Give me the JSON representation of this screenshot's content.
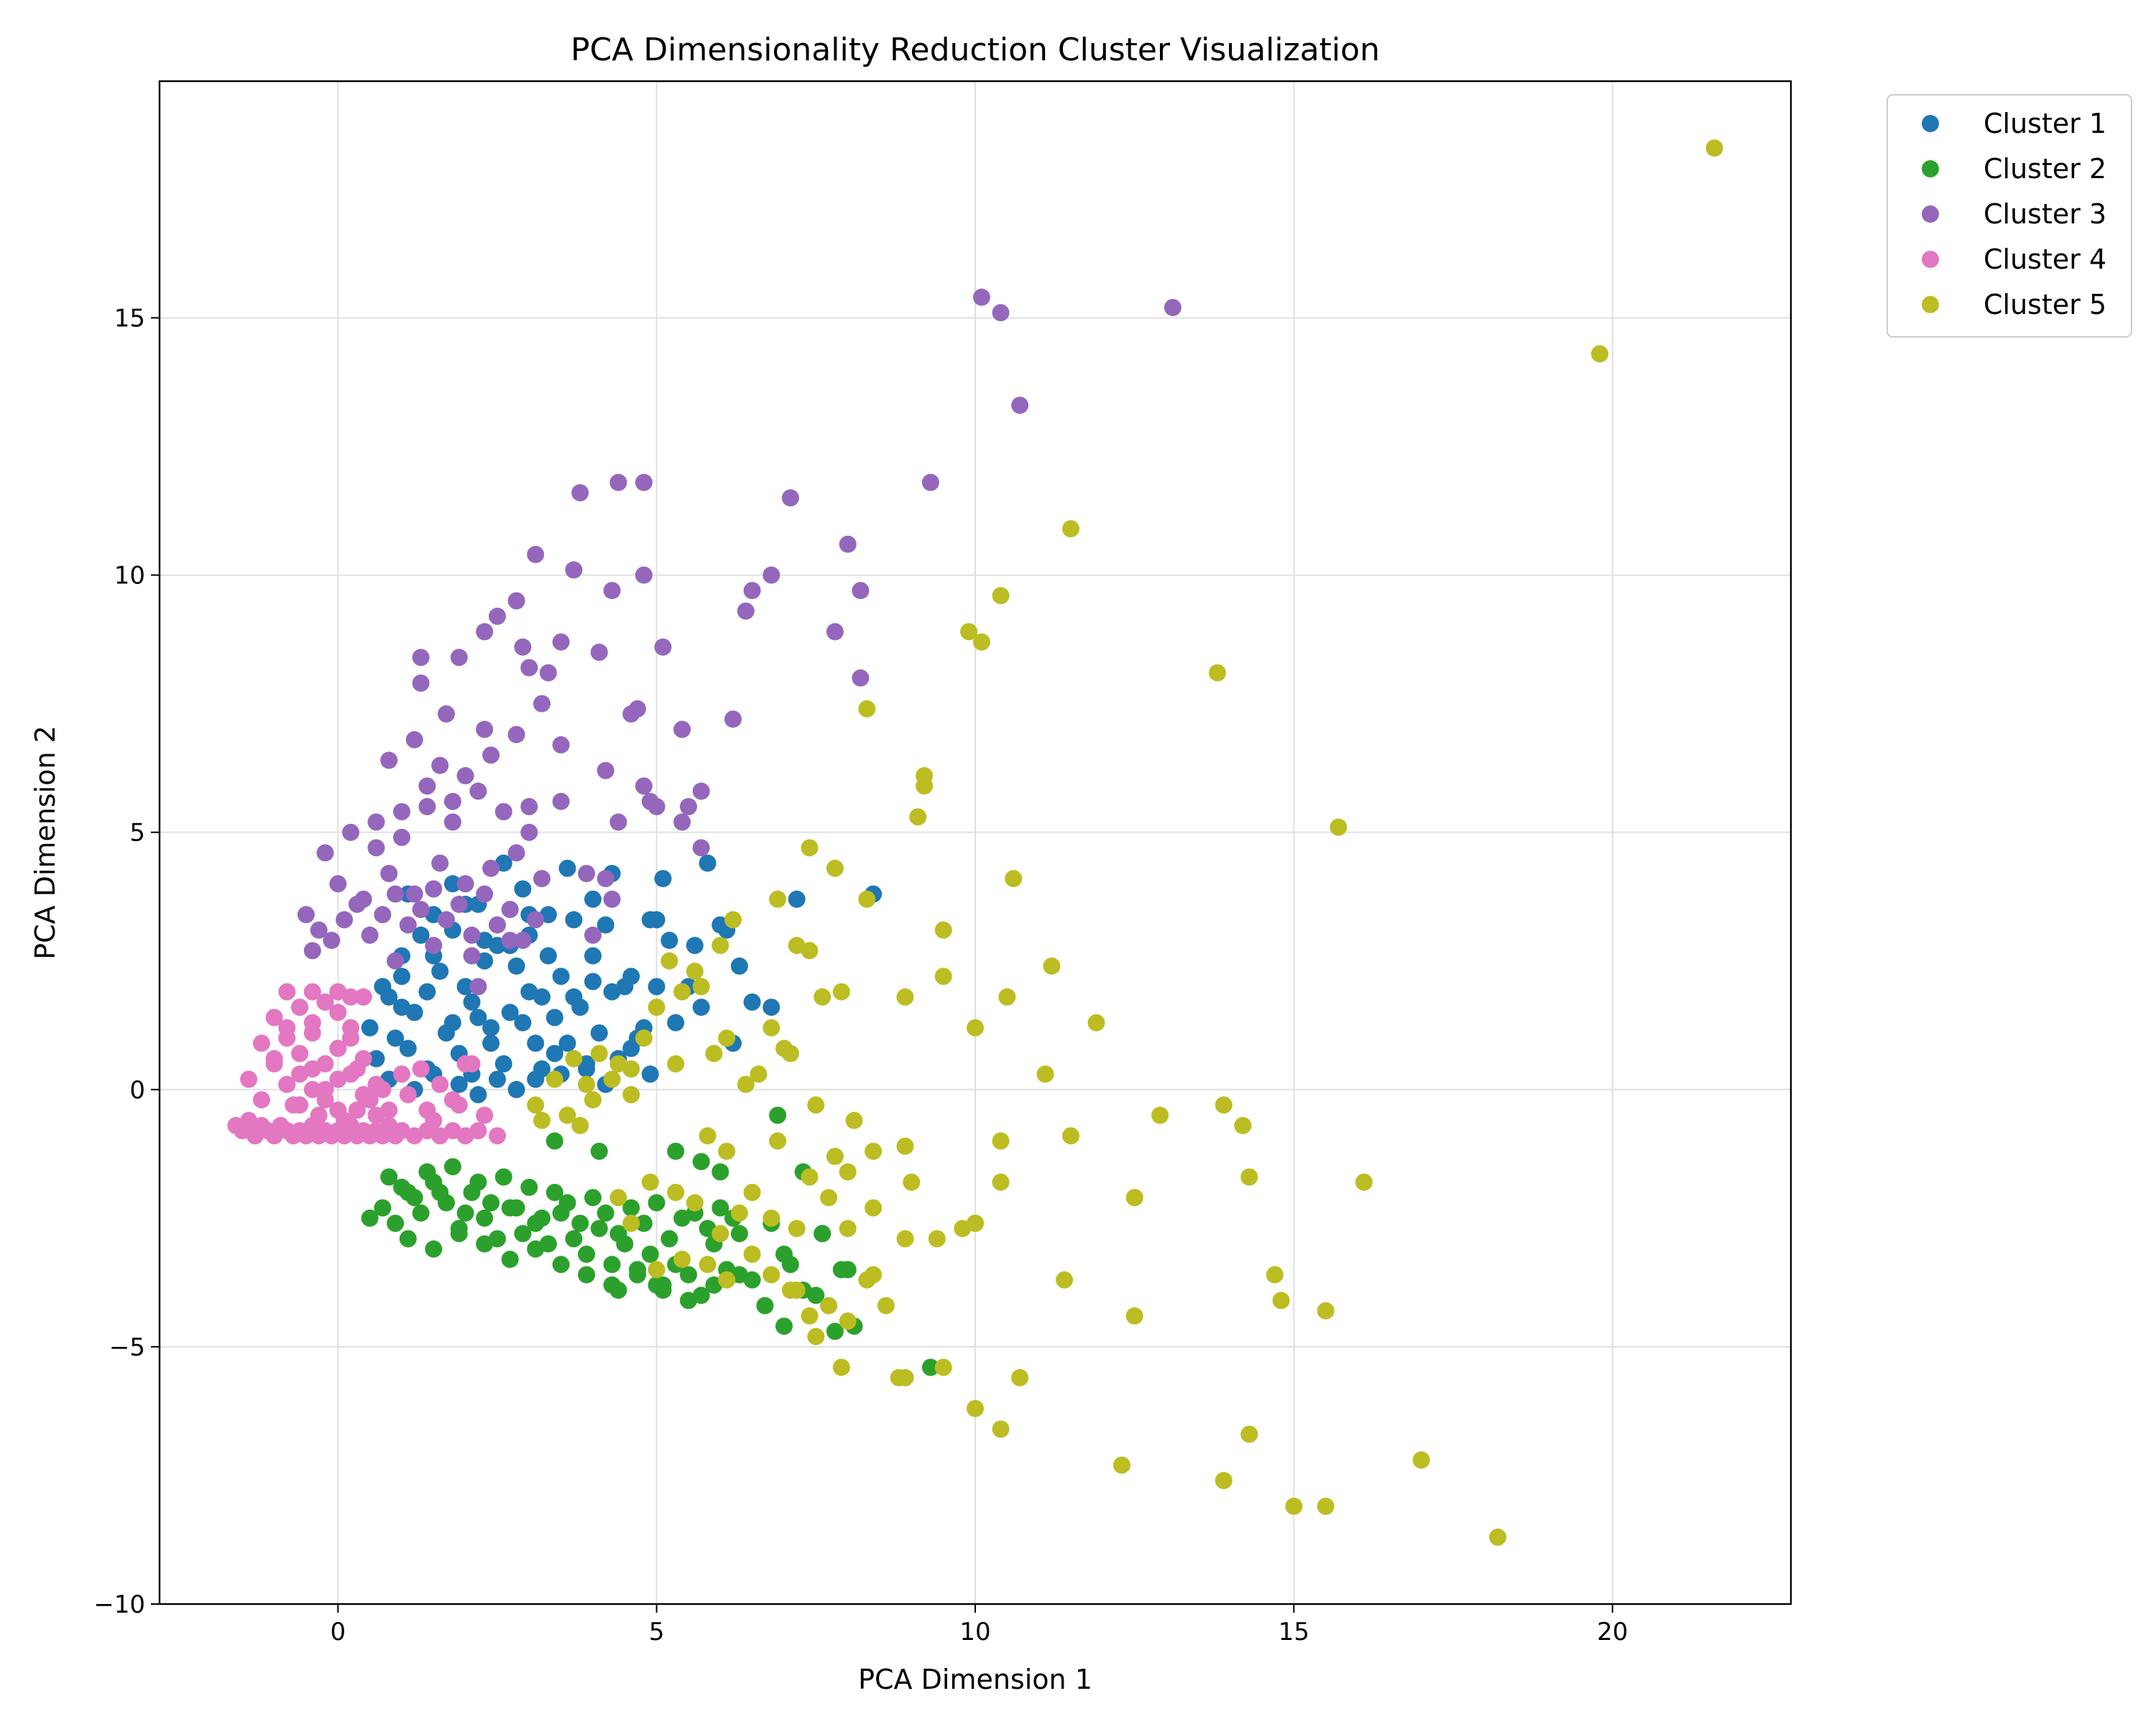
{
  "chart_data": {
    "type": "scatter",
    "title": "PCA Dimensionality Reduction Cluster Visualization",
    "xlabel": "PCA Dimension 1",
    "ylabel": "PCA Dimension 2",
    "xlim": [
      -2.8,
      22.8
    ],
    "ylim": [
      -10,
      19.6
    ],
    "xticks": [
      0,
      5,
      10,
      15,
      20
    ],
    "yticks": [
      -10,
      -5,
      0,
      5,
      10,
      15
    ],
    "grid": true,
    "legend": "outside-top-right",
    "series": [
      {
        "name": "Cluster 1",
        "color": "#1f77b4",
        "x": [
          0.5,
          0.8,
          1.0,
          1.2,
          1.5,
          1.8,
          2.0,
          2.2,
          2.5,
          2.8,
          3.0,
          3.2,
          3.5,
          3.8,
          4.0,
          4.2,
          4.5,
          4.8,
          5.0,
          5.2,
          5.5,
          5.8,
          6.0,
          6.3,
          6.8,
          7.2,
          8.4,
          0.6,
          0.9,
          1.1,
          1.4,
          1.7,
          1.9,
          2.1,
          2.4,
          2.6,
          2.9,
          3.1,
          3.4,
          3.6,
          3.9,
          4.1,
          4.4,
          4.6,
          4.9,
          5.1,
          5.6,
          6.1,
          0.7,
          1.0,
          1.3,
          1.6,
          2.0,
          2.3,
          2.7,
          3.0,
          3.3,
          3.7,
          4.0,
          4.3,
          0.8,
          1.2,
          1.5,
          1.9,
          2.2,
          2.5,
          2.8,
          3.2,
          3.5,
          3.9,
          4.2,
          1.0,
          1.4,
          1.8,
          2.1,
          2.4,
          2.7,
          3.0,
          3.4,
          3.7,
          1.1,
          1.5,
          1.8,
          2.2,
          2.6,
          2.9,
          3.3,
          3.6,
          4.0,
          4.3,
          4.7,
          5.0,
          5.3,
          5.7,
          6.2,
          6.5,
          4.6,
          4.9,
          3.1,
          2.3
        ],
        "y": [
          1.2,
          1.8,
          2.2,
          1.5,
          2.6,
          3.1,
          2.0,
          1.4,
          2.8,
          2.4,
          3.0,
          1.8,
          2.2,
          1.6,
          2.6,
          3.2,
          2.0,
          1.2,
          3.3,
          2.9,
          2.0,
          4.4,
          3.2,
          2.4,
          1.6,
          3.7,
          3.8,
          0.6,
          1.0,
          0.8,
          0.4,
          1.1,
          0.7,
          0.3,
          0.9,
          0.5,
          1.3,
          0.2,
          0.7,
          0.9,
          0.4,
          1.1,
          0.6,
          0.8,
          0.3,
          4.1,
          2.8,
          3.1,
          2.0,
          2.6,
          3.0,
          2.3,
          3.6,
          2.5,
          2.8,
          3.4,
          2.6,
          3.3,
          2.1,
          1.9,
          0.2,
          0.0,
          0.3,
          0.1,
          -0.1,
          0.2,
          0.0,
          0.4,
          0.3,
          0.5,
          0.1,
          1.6,
          1.9,
          1.3,
          1.7,
          1.2,
          1.5,
          1.9,
          1.4,
          1.8,
          3.8,
          3.4,
          4.0,
          3.6,
          4.4,
          3.9,
          3.4,
          4.3,
          3.7,
          4.2,
          1.0,
          2.0,
          1.3,
          1.6,
          0.9,
          1.7,
          2.2,
          3.3,
          0.9,
          2.9
        ]
      },
      {
        "name": "Cluster 2",
        "color": "#2ca02c",
        "x": [
          0.5,
          0.7,
          0.9,
          1.1,
          1.3,
          1.5,
          1.7,
          1.9,
          2.1,
          2.3,
          2.5,
          2.7,
          2.9,
          3.1,
          3.3,
          3.5,
          3.7,
          3.9,
          4.1,
          4.3,
          4.5,
          4.7,
          4.9,
          5.1,
          5.3,
          5.5,
          5.7,
          5.9,
          6.1,
          6.3,
          6.5,
          6.8,
          7.0,
          7.3,
          7.6,
          7.9,
          8.1,
          9.3,
          0.8,
          1.0,
          1.2,
          1.4,
          1.6,
          1.8,
          2.0,
          2.2,
          2.4,
          2.6,
          2.8,
          3.0,
          3.2,
          3.4,
          3.6,
          3.8,
          4.0,
          4.2,
          4.4,
          4.6,
          4.8,
          5.0,
          5.2,
          5.4,
          5.6,
          5.8,
          6.0,
          6.2,
          1.1,
          1.5,
          1.9,
          2.3,
          2.7,
          3.1,
          3.5,
          3.9,
          4.3,
          4.7,
          5.1,
          5.5,
          5.9,
          6.3,
          6.7,
          7.1,
          7.5,
          7.8,
          3.4,
          4.1,
          5.3,
          5.7,
          6.0,
          6.9,
          7.3,
          7.6,
          8.0,
          7.0,
          5.0,
          4.4
        ],
        "y": [
          -2.5,
          -2.3,
          -2.6,
          -2.0,
          -2.4,
          -1.8,
          -2.2,
          -2.7,
          -2.0,
          -2.5,
          -2.9,
          -2.3,
          -2.8,
          -2.6,
          -3.0,
          -2.4,
          -2.9,
          -3.2,
          -2.7,
          -3.4,
          -3.0,
          -3.6,
          -3.2,
          -3.8,
          -3.4,
          -3.6,
          -4.0,
          -3.0,
          -3.5,
          -2.8,
          -3.7,
          -2.6,
          -3.2,
          -3.9,
          -2.8,
          -3.5,
          -4.6,
          -5.4,
          -1.7,
          -1.9,
          -2.1,
          -1.6,
          -2.0,
          -1.5,
          -2.4,
          -1.8,
          -2.2,
          -1.7,
          -2.3,
          -1.9,
          -2.5,
          -2.0,
          -2.2,
          -2.6,
          -2.1,
          -2.4,
          -2.8,
          -2.3,
          -2.6,
          -2.2,
          -2.9,
          -2.5,
          -2.4,
          -2.7,
          -2.3,
          -2.5,
          -2.9,
          -3.1,
          -2.8,
          -3.0,
          -3.3,
          -3.1,
          -3.4,
          -3.6,
          -3.8,
          -3.5,
          -3.9,
          -4.1,
          -3.8,
          -3.6,
          -4.2,
          -3.4,
          -4.0,
          -4.7,
          -1.0,
          -1.2,
          -1.2,
          -1.4,
          -1.6,
          -0.5,
          -1.6,
          -2.8,
          -3.5,
          -4.6,
          -3.8,
          -3.9
        ]
      },
      {
        "name": "Cluster 3",
        "color": "#9467bd",
        "x": [
          10.1,
          10.4,
          13.1,
          10.7,
          9.3,
          7.1,
          4.4,
          4.8,
          3.8,
          3.1,
          3.7,
          4.8,
          6.8,
          8.0,
          8.2,
          6.5,
          6.4,
          4.3,
          2.8,
          2.5,
          2.3,
          1.3,
          1.9,
          5.1,
          7.8,
          8.2,
          2.9,
          3.0,
          3.3,
          1.3,
          4.1,
          3.5,
          4.7,
          4.6,
          3.2,
          5.4,
          6.2,
          3.5,
          4.2,
          4.8,
          4.9,
          5.7,
          5.0,
          5.5,
          5.4,
          5.7,
          4.4,
          3.5,
          3.9,
          4.2,
          -0.5,
          -0.3,
          -0.1,
          0.1,
          0.3,
          0.5,
          0.7,
          0.9,
          1.1,
          1.3,
          1.5,
          1.7,
          1.9,
          2.1,
          2.3,
          2.5,
          2.7,
          2.9,
          3.1,
          -0.4,
          0.0,
          0.4,
          0.8,
          1.2,
          1.6,
          2.0,
          2.4,
          2.8,
          3.2,
          0.6,
          1.0,
          1.4,
          1.8,
          2.2,
          2.6,
          3.0,
          0.8,
          1.2,
          1.6,
          2.0,
          2.4,
          2.8,
          -0.2,
          0.2,
          0.6,
          1.0,
          1.4,
          1.8,
          0.9,
          1.5,
          2.1,
          2.7,
          1.7,
          2.3,
          3.0,
          4.0,
          4.3,
          2.2
        ],
        "y": [
          15.4,
          15.1,
          15.2,
          13.3,
          11.8,
          11.5,
          11.8,
          11.8,
          11.6,
          10.4,
          10.1,
          10.0,
          10.0,
          10.6,
          9.7,
          9.7,
          9.3,
          9.7,
          9.5,
          9.2,
          8.9,
          8.4,
          8.4,
          8.6,
          8.9,
          8.0,
          8.6,
          8.2,
          8.1,
          7.9,
          8.5,
          8.7,
          7.4,
          7.3,
          7.5,
          7.0,
          7.2,
          6.7,
          6.2,
          5.9,
          5.6,
          5.8,
          5.5,
          5.5,
          5.2,
          4.7,
          5.2,
          5.6,
          4.2,
          4.1,
          3.4,
          3.1,
          2.9,
          3.3,
          3.6,
          3.0,
          3.4,
          3.8,
          3.2,
          3.5,
          3.9,
          3.3,
          3.6,
          3.0,
          3.8,
          3.2,
          3.5,
          2.9,
          3.3,
          2.7,
          4.0,
          3.7,
          4.2,
          3.8,
          4.4,
          4.0,
          4.3,
          4.6,
          4.1,
          5.2,
          4.9,
          5.5,
          5.2,
          5.8,
          5.4,
          5.0,
          6.4,
          6.8,
          6.3,
          6.1,
          6.5,
          6.9,
          4.6,
          5.0,
          4.7,
          5.4,
          5.9,
          5.6,
          2.5,
          2.8,
          2.6,
          2.9,
          7.3,
          7.0,
          5.5,
          3.0,
          3.7,
          2.0
        ]
      },
      {
        "name": "Cluster 4",
        "color": "#e377c2",
        "x": [
          -1.6,
          -1.5,
          -1.4,
          -1.3,
          -1.2,
          -1.1,
          -1.0,
          -0.9,
          -0.8,
          -0.7,
          -0.6,
          -0.5,
          -0.4,
          -0.3,
          -0.2,
          -0.1,
          0.0,
          0.1,
          0.2,
          0.3,
          0.4,
          0.5,
          0.6,
          0.7,
          0.8,
          0.9,
          1.0,
          1.2,
          1.4,
          1.6,
          1.8,
          2.0,
          2.2,
          2.5,
          -1.4,
          -1.2,
          -1.0,
          -0.8,
          -0.6,
          -0.4,
          -0.2,
          0.0,
          0.2,
          0.4,
          0.6,
          -1.2,
          -1.0,
          -0.8,
          -0.6,
          -0.4,
          -0.2,
          0.0,
          0.2,
          0.4,
          -1.0,
          -0.8,
          -0.6,
          -0.4,
          -0.2,
          0.0,
          0.2,
          0.4,
          -0.8,
          -0.6,
          -0.4,
          -0.2,
          0.0,
          0.2,
          -0.6,
          -0.4,
          -0.2,
          0.0,
          0.3,
          0.6,
          -0.7,
          -0.3,
          0.1,
          0.5,
          0.8,
          1.1,
          1.5,
          1.9,
          2.3,
          0.3,
          0.7,
          1.0,
          1.3,
          1.6,
          2.0,
          1.4,
          1.8,
          2.1
        ],
        "y": [
          -0.7,
          -0.8,
          -0.6,
          -0.9,
          -0.7,
          -0.8,
          -0.9,
          -0.7,
          -0.8,
          -0.9,
          -0.8,
          -0.9,
          -0.7,
          -0.9,
          -0.8,
          -0.9,
          -0.8,
          -0.9,
          -0.7,
          -0.9,
          -0.8,
          -0.9,
          -0.8,
          -0.9,
          -0.7,
          -0.9,
          -0.8,
          -0.9,
          -0.8,
          -0.9,
          -0.8,
          -0.9,
          -0.8,
          -0.9,
          0.2,
          -0.2,
          0.5,
          0.1,
          -0.3,
          0.4,
          0.0,
          -0.4,
          0.3,
          -0.1,
          -0.5,
          0.9,
          0.6,
          1.0,
          0.7,
          1.1,
          0.5,
          0.8,
          1.0,
          0.6,
          1.4,
          1.2,
          1.6,
          1.3,
          1.7,
          1.5,
          1.2,
          1.8,
          1.9,
          1.6,
          1.9,
          1.7,
          1.9,
          1.8,
          0.3,
          0.0,
          -0.2,
          0.2,
          -0.4,
          0.1,
          -0.3,
          -0.5,
          -0.6,
          -0.2,
          -0.4,
          -0.1,
          -0.6,
          -0.3,
          -0.5,
          0.4,
          0.0,
          0.3,
          0.4,
          0.1,
          0.5,
          -0.4,
          -0.2,
          0.5
        ]
      },
      {
        "name": "Cluster 5",
        "color": "#bcbd22",
        "x": [
          21.6,
          19.8,
          11.5,
          10.4,
          9.9,
          10.1,
          13.8,
          8.3,
          15.7,
          9.2,
          9.2,
          9.1,
          7.4,
          7.8,
          10.6,
          6.9,
          8.3,
          9.5,
          7.4,
          7.2,
          7.6,
          7.9,
          8.9,
          9.5,
          10.5,
          11.2,
          10.0,
          11.9,
          6.8,
          7.0,
          7.1,
          5.2,
          5.6,
          5.4,
          5.7,
          6.0,
          6.2,
          6.1,
          5.0,
          4.8,
          4.4,
          4.6,
          4.3,
          4.1,
          3.9,
          3.7,
          3.4,
          3.1,
          3.2,
          3.6,
          3.8,
          4.0,
          4.6,
          5.3,
          5.9,
          6.4,
          6.6,
          7.5,
          8.1,
          8.4,
          8.9,
          11.1,
          12.9,
          13.9,
          14.2,
          14.3,
          16.1,
          12.5,
          11.5,
          10.4,
          10.0,
          10.4,
          9.0,
          8.0,
          7.8,
          7.4,
          6.9,
          6.5,
          6.1,
          5.8,
          5.3,
          4.9,
          4.6,
          4.4,
          5.6,
          6.0,
          6.3,
          6.8,
          7.2,
          7.7,
          8.0,
          8.4,
          8.9,
          9.4,
          9.8,
          10.0,
          11.4,
          12.5,
          14.7,
          14.8,
          15.5,
          12.5,
          10.0,
          10.4,
          10.7,
          8.8,
          8.9,
          9.5,
          7.2,
          7.4,
          7.7,
          8.0,
          8.3,
          8.6,
          12.3,
          13.9,
          14.3,
          15.0,
          15.5,
          17.0,
          18.2,
          6.5,
          6.8,
          7.1,
          7.5,
          7.9,
          8.4,
          5.8,
          6.1,
          5.4,
          5.0
        ],
        "y": [
          18.3,
          14.3,
          10.9,
          9.6,
          8.9,
          8.7,
          8.1,
          7.4,
          5.1,
          6.1,
          5.9,
          5.3,
          4.7,
          4.3,
          4.1,
          3.7,
          3.7,
          3.1,
          2.7,
          2.8,
          1.8,
          1.9,
          1.8,
          2.2,
          1.8,
          2.4,
          1.2,
          1.3,
          1.2,
          0.8,
          0.7,
          2.5,
          2.3,
          1.9,
          2.0,
          2.8,
          3.3,
          1.0,
          1.6,
          1.0,
          0.5,
          0.4,
          0.2,
          0.7,
          0.1,
          0.6,
          0.2,
          -0.3,
          -0.6,
          -0.5,
          -0.7,
          -0.2,
          -0.1,
          0.5,
          0.7,
          0.1,
          0.3,
          -0.3,
          -0.6,
          -1.2,
          -1.1,
          0.3,
          -0.5,
          -0.3,
          -0.7,
          -1.7,
          -1.8,
          -2.1,
          -0.9,
          -1.0,
          -2.6,
          -1.8,
          -1.8,
          -1.6,
          -1.3,
          -1.7,
          -1.0,
          -2.0,
          -1.2,
          -0.9,
          -2.0,
          -1.8,
          -2.6,
          -2.1,
          -2.2,
          -2.8,
          -2.4,
          -2.5,
          -2.7,
          -2.1,
          -2.7,
          -2.3,
          -2.9,
          -2.9,
          -2.7,
          -2.6,
          -3.7,
          -4.4,
          -3.6,
          -4.1,
          -4.3,
          -2.1,
          -6.2,
          -6.6,
          -5.6,
          -5.6,
          -5.6,
          -5.4,
          -3.9,
          -4.4,
          -4.2,
          -4.5,
          -3.7,
          -4.2,
          -7.3,
          -7.6,
          -6.7,
          -8.1,
          -8.1,
          -7.2,
          -8.7,
          -3.2,
          -3.6,
          -3.9,
          -4.8,
          -5.4,
          -3.6,
          -3.4,
          -3.7,
          -3.3,
          -3.5
        ]
      }
    ]
  }
}
